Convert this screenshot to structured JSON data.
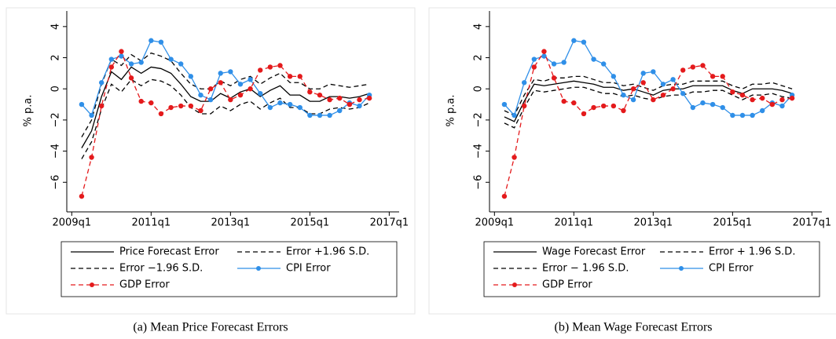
{
  "chart_data": [
    {
      "type": "line",
      "caption": "(a) Mean Price Forecast Errors",
      "ylabel": "% p.a.",
      "x": [
        197,
        198,
        199,
        200,
        201,
        202,
        203,
        204,
        205,
        206,
        207,
        208,
        209,
        210,
        211,
        212,
        213,
        214,
        215,
        216,
        217,
        218,
        219,
        220,
        221,
        222,
        223,
        224,
        225,
        226
      ],
      "xlim": [
        195.5,
        229
      ],
      "xticks": [
        {
          "value": 196,
          "label": "2009q1"
        },
        {
          "value": 204,
          "label": "2011q1"
        },
        {
          "value": 212,
          "label": "2013q1"
        },
        {
          "value": 220,
          "label": "2015q1"
        },
        {
          "value": 228,
          "label": "2017q1"
        }
      ],
      "ylim": [
        -7.8,
        5
      ],
      "yticks": [
        {
          "value": -6,
          "label": "−6"
        },
        {
          "value": -4,
          "label": "−4"
        },
        {
          "value": -2,
          "label": "−2"
        },
        0,
        2,
        4
      ],
      "series": [
        {
          "name": "Price Forecast Error",
          "color": "#000000",
          "style": "solid",
          "marker": false,
          "values": [
            -3.8,
            -2.7,
            -0.5,
            1.1,
            0.6,
            1.4,
            1.0,
            1.4,
            1.3,
            1.0,
            0.3,
            -0.5,
            -0.8,
            -0.8,
            -0.3,
            -0.6,
            -0.2,
            0.0,
            -0.5,
            -0.1,
            0.2,
            -0.4,
            -0.4,
            -0.8,
            -0.8,
            -0.5,
            -0.5,
            -0.6,
            -0.5,
            -0.3
          ]
        },
        {
          "name": "Error +1.96 S.D.",
          "color": "#000000",
          "style": "dashed",
          "marker": false,
          "values": [
            -3.1,
            -2.0,
            0.3,
            1.9,
            1.5,
            2.2,
            1.8,
            2.3,
            2.1,
            1.8,
            1.0,
            0.3,
            0.0,
            0.0,
            0.5,
            0.2,
            0.6,
            0.8,
            0.3,
            0.7,
            1.0,
            0.4,
            0.4,
            0.0,
            0.0,
            0.3,
            0.2,
            0.1,
            0.2,
            0.3
          ]
        },
        {
          "name": "Error −1.96 S.D.",
          "color": "#000000",
          "style": "dashed",
          "marker": false,
          "values": [
            -4.5,
            -3.4,
            -1.3,
            0.3,
            -0.2,
            0.6,
            0.2,
            0.6,
            0.5,
            0.2,
            -0.4,
            -1.2,
            -1.6,
            -1.6,
            -1.1,
            -1.4,
            -1.0,
            -0.8,
            -1.3,
            -0.9,
            -0.6,
            -1.2,
            -1.2,
            -1.6,
            -1.6,
            -1.3,
            -1.2,
            -1.3,
            -1.2,
            -0.9
          ]
        },
        {
          "name": "CPI Error",
          "color": "#2f8fe8",
          "style": "solid",
          "marker": true,
          "values": [
            -1.0,
            -1.7,
            0.4,
            1.9,
            2.1,
            1.6,
            1.7,
            3.1,
            3.0,
            1.9,
            1.6,
            0.8,
            -0.4,
            -0.7,
            1.0,
            1.1,
            0.3,
            0.6,
            -0.3,
            -1.2,
            -0.9,
            -1.0,
            -1.2,
            -1.7,
            -1.7,
            -1.7,
            -1.4,
            -0.9,
            -1.1,
            -0.4
          ]
        },
        {
          "name": "GDP Error",
          "color": "#e41a1c",
          "style": "dashed",
          "marker": true,
          "values": [
            -6.9,
            -4.4,
            -1.1,
            1.4,
            2.4,
            0.7,
            -0.8,
            -0.9,
            -1.6,
            -1.2,
            -1.1,
            -1.1,
            -1.4,
            0.0,
            0.4,
            -0.7,
            -0.4,
            0.0,
            1.2,
            1.4,
            1.5,
            0.8,
            0.8,
            -0.2,
            -0.4,
            -0.7,
            -0.6,
            -1.0,
            -0.7,
            -0.6
          ]
        }
      ]
    },
    {
      "type": "line",
      "caption": "(b) Mean Wage Forecast Errors",
      "ylabel": "% p.a.",
      "x": [
        197,
        198,
        199,
        200,
        201,
        202,
        203,
        204,
        205,
        206,
        207,
        208,
        209,
        210,
        211,
        212,
        213,
        214,
        215,
        216,
        217,
        218,
        219,
        220,
        221,
        222,
        223,
        224,
        225,
        226
      ],
      "xlim": [
        195.5,
        229
      ],
      "xticks": [
        {
          "value": 196,
          "label": "2009q1"
        },
        {
          "value": 204,
          "label": "2011q1"
        },
        {
          "value": 212,
          "label": "2013q1"
        },
        {
          "value": 220,
          "label": "2015q1"
        },
        {
          "value": 228,
          "label": "2017q1"
        }
      ],
      "ylim": [
        -7.8,
        5
      ],
      "yticks": [
        {
          "value": -6,
          "label": "−6"
        },
        {
          "value": -4,
          "label": "−4"
        },
        {
          "value": -2,
          "label": "−2"
        },
        0,
        2,
        4
      ],
      "series": [
        {
          "name": "Wage Forecast Error",
          "color": "#000000",
          "style": "solid",
          "marker": false,
          "values": [
            -1.8,
            -2.1,
            -0.8,
            0.3,
            0.2,
            0.3,
            0.4,
            0.5,
            0.4,
            0.3,
            0.1,
            0.1,
            -0.1,
            0.0,
            -0.2,
            -0.4,
            -0.1,
            0.0,
            0.0,
            0.2,
            0.2,
            0.2,
            0.2,
            -0.1,
            -0.3,
            0.0,
            0.0,
            0.0,
            -0.1,
            -0.3
          ]
        },
        {
          "name": "Error + 1.96 S.D.",
          "color": "#000000",
          "style": "dashed",
          "marker": false,
          "values": [
            -1.4,
            -1.7,
            -0.4,
            0.6,
            0.5,
            0.7,
            0.7,
            0.8,
            0.8,
            0.6,
            0.4,
            0.4,
            0.2,
            0.3,
            0.1,
            -0.1,
            0.2,
            0.3,
            0.3,
            0.5,
            0.5,
            0.5,
            0.5,
            0.2,
            0.0,
            0.3,
            0.3,
            0.4,
            0.2,
            0.0
          ]
        },
        {
          "name": "Error − 1.96 S.D.",
          "color": "#000000",
          "style": "dashed",
          "marker": false,
          "values": [
            -2.2,
            -2.5,
            -1.2,
            -0.1,
            -0.2,
            -0.1,
            0.0,
            0.1,
            0.1,
            -0.1,
            -0.3,
            -0.3,
            -0.5,
            -0.4,
            -0.6,
            -0.7,
            -0.5,
            -0.4,
            -0.4,
            -0.2,
            -0.2,
            -0.1,
            -0.1,
            -0.4,
            -0.7,
            -0.4,
            -0.4,
            -0.3,
            -0.5,
            -0.6
          ]
        },
        {
          "name": "CPI Error",
          "color": "#2f8fe8",
          "style": "solid",
          "marker": true,
          "values": [
            -1.0,
            -1.7,
            0.4,
            1.9,
            2.1,
            1.6,
            1.7,
            3.1,
            3.0,
            1.9,
            1.6,
            0.8,
            -0.4,
            -0.7,
            1.0,
            1.1,
            0.3,
            0.6,
            -0.3,
            -1.2,
            -0.9,
            -1.0,
            -1.2,
            -1.7,
            -1.7,
            -1.7,
            -1.4,
            -0.9,
            -1.1,
            -0.4
          ]
        },
        {
          "name": "GDP Error",
          "color": "#e41a1c",
          "style": "dashed",
          "marker": true,
          "values": [
            -6.9,
            -4.4,
            -1.1,
            1.4,
            2.4,
            0.7,
            -0.8,
            -0.9,
            -1.6,
            -1.2,
            -1.1,
            -1.1,
            -1.4,
            0.0,
            0.4,
            -0.7,
            -0.4,
            0.0,
            1.2,
            1.4,
            1.5,
            0.8,
            0.8,
            -0.2,
            -0.4,
            -0.7,
            -0.6,
            -1.0,
            -0.7,
            -0.6
          ]
        }
      ]
    }
  ]
}
